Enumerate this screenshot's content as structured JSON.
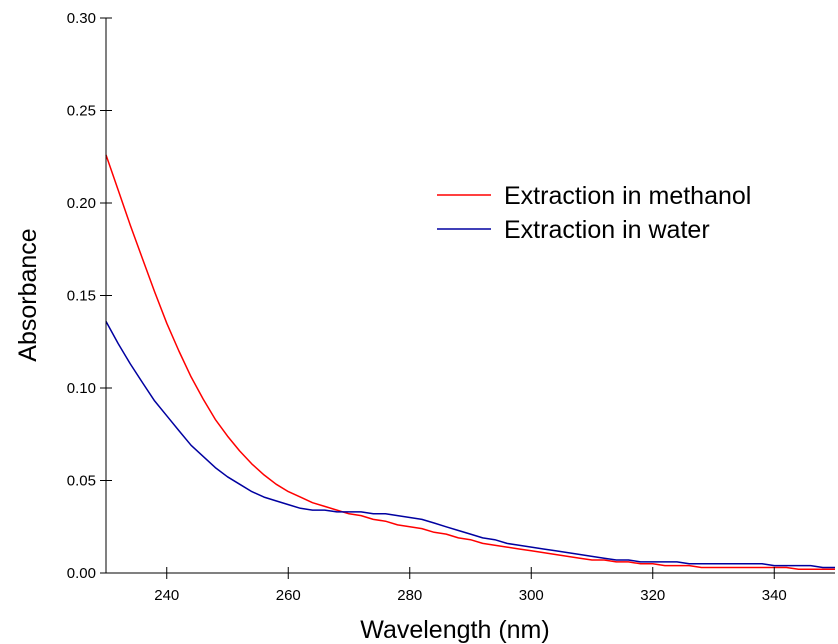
{
  "chart_data": {
    "type": "line",
    "xlabel": "Wavelength (nm)",
    "ylabel": "Absorbance",
    "xlim": [
      230,
      350
    ],
    "ylim": [
      0,
      0.3
    ],
    "x_ticks": [
      240,
      260,
      280,
      300,
      320,
      340
    ],
    "x_tick_labels": [
      "240",
      "260",
      "280",
      "300",
      "320",
      "340"
    ],
    "y_ticks": [
      0,
      0.05,
      0.1,
      0.15,
      0.2,
      0.25,
      0.3
    ],
    "y_tick_labels": [
      "0.00",
      "0.05",
      "0.10",
      "0.15",
      "0.20",
      "0.25",
      "0.30"
    ],
    "grid": false,
    "legend_position": "top-right",
    "series": [
      {
        "name": "Extraction in methanol",
        "color": "#ff0000",
        "x": [
          230,
          232,
          234,
          236,
          238,
          240,
          242,
          244,
          246,
          248,
          250,
          252,
          254,
          256,
          258,
          260,
          262,
          264,
          266,
          268,
          270,
          272,
          274,
          276,
          278,
          280,
          282,
          284,
          286,
          288,
          290,
          292,
          294,
          296,
          298,
          300,
          302,
          304,
          306,
          308,
          310,
          312,
          314,
          316,
          318,
          320,
          322,
          324,
          326,
          328,
          330,
          332,
          334,
          336,
          338,
          340,
          342,
          344,
          346,
          348,
          350
        ],
        "y": [
          0.226,
          0.207,
          0.188,
          0.17,
          0.152,
          0.135,
          0.12,
          0.106,
          0.094,
          0.083,
          0.074,
          0.066,
          0.059,
          0.053,
          0.048,
          0.044,
          0.041,
          0.038,
          0.036,
          0.034,
          0.032,
          0.031,
          0.029,
          0.028,
          0.026,
          0.025,
          0.024,
          0.022,
          0.021,
          0.019,
          0.018,
          0.016,
          0.015,
          0.014,
          0.013,
          0.012,
          0.011,
          0.01,
          0.009,
          0.008,
          0.007,
          0.007,
          0.006,
          0.006,
          0.005,
          0.005,
          0.004,
          0.004,
          0.004,
          0.003,
          0.003,
          0.003,
          0.003,
          0.003,
          0.003,
          0.003,
          0.003,
          0.002,
          0.002,
          0.002,
          0.002
        ]
      },
      {
        "name": "Extraction in water",
        "color": "#0000a0",
        "x": [
          230,
          232,
          234,
          236,
          238,
          240,
          242,
          244,
          246,
          248,
          250,
          252,
          254,
          256,
          258,
          260,
          262,
          264,
          266,
          268,
          270,
          272,
          274,
          276,
          278,
          280,
          282,
          284,
          286,
          288,
          290,
          292,
          294,
          296,
          298,
          300,
          302,
          304,
          306,
          308,
          310,
          312,
          314,
          316,
          318,
          320,
          322,
          324,
          326,
          328,
          330,
          332,
          334,
          336,
          338,
          340,
          342,
          344,
          346,
          348,
          350
        ],
        "y": [
          0.136,
          0.124,
          0.113,
          0.103,
          0.093,
          0.085,
          0.077,
          0.069,
          0.063,
          0.057,
          0.052,
          0.048,
          0.044,
          0.041,
          0.039,
          0.037,
          0.035,
          0.034,
          0.034,
          0.033,
          0.033,
          0.033,
          0.032,
          0.032,
          0.031,
          0.03,
          0.029,
          0.027,
          0.025,
          0.023,
          0.021,
          0.019,
          0.018,
          0.016,
          0.015,
          0.014,
          0.013,
          0.012,
          0.011,
          0.01,
          0.009,
          0.008,
          0.007,
          0.007,
          0.006,
          0.006,
          0.006,
          0.006,
          0.005,
          0.005,
          0.005,
          0.005,
          0.005,
          0.005,
          0.005,
          0.004,
          0.004,
          0.004,
          0.004,
          0.003,
          0.003
        ]
      }
    ]
  }
}
